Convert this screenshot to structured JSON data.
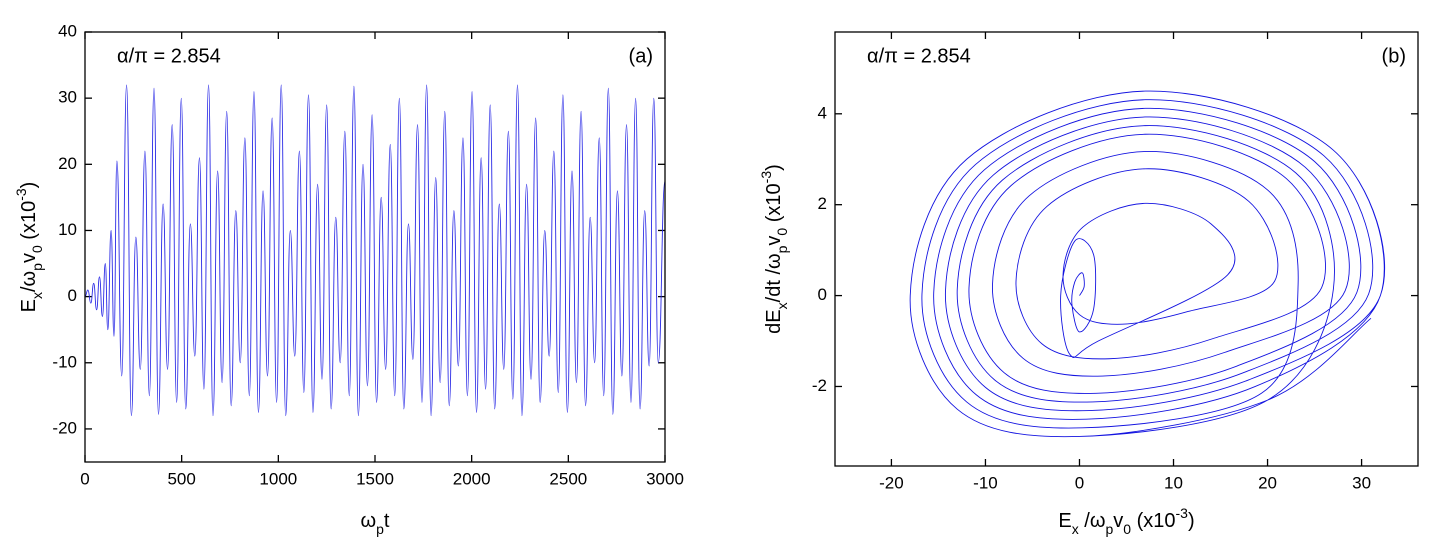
{
  "chart_data": [
    {
      "type": "line",
      "annotation": "α/π = 2.854",
      "panel_label": "(a)",
      "x_label": [
        {
          "text": "ω"
        },
        {
          "text": "p",
          "shift": "sub"
        },
        {
          "text": "t"
        }
      ],
      "y_label": [
        {
          "text": "E"
        },
        {
          "text": "x",
          "shift": "sub"
        },
        {
          "text": "/ω"
        },
        {
          "text": "p",
          "shift": "sub"
        },
        {
          "text": "v"
        },
        {
          "text": "0",
          "shift": "sub"
        },
        {
          "text": " (x10"
        },
        {
          "text": "-3",
          "shift": "super"
        },
        {
          "text": ")"
        }
      ],
      "xlim": [
        0,
        3000
      ],
      "xticks": [
        0,
        500,
        1000,
        1500,
        2000,
        2500,
        3000
      ],
      "ylim": [
        -25,
        40
      ],
      "yticks": [
        -20,
        -10,
        0,
        10,
        20,
        30,
        40
      ],
      "series": [
        {
          "color": "#2a2ae6",
          "x": [
            0,
            15,
            30,
            45,
            60,
            75,
            90,
            105,
            118,
            135,
            150,
            165,
            190,
            215,
            240,
            263,
            286,
            310,
            333,
            357,
            380,
            404,
            427,
            451,
            474,
            498,
            521,
            545,
            568,
            592,
            615,
            639,
            662,
            686,
            709,
            733,
            756,
            780,
            803,
            827,
            850,
            874,
            897,
            921,
            944,
            968,
            991,
            1015,
            1038,
            1062,
            1085,
            1109,
            1132,
            1156,
            1179,
            1203,
            1226,
            1250,
            1273,
            1297,
            1320,
            1344,
            1367,
            1391,
            1414,
            1438,
            1461,
            1485,
            1508,
            1532,
            1555,
            1579,
            1602,
            1626,
            1649,
            1673,
            1696,
            1720,
            1743,
            1767,
            1790,
            1814,
            1837,
            1861,
            1884,
            1908,
            1931,
            1955,
            1978,
            2002,
            2025,
            2049,
            2072,
            2096,
            2119,
            2143,
            2166,
            2190,
            2213,
            2237,
            2260,
            2284,
            2307,
            2331,
            2354,
            2378,
            2401,
            2425,
            2448,
            2472,
            2495,
            2519,
            2542,
            2566,
            2589,
            2613,
            2636,
            2660,
            2683,
            2707,
            2730,
            2754,
            2777,
            2801,
            2824,
            2848,
            2871,
            2895,
            2918,
            2942,
            2965,
            3000
          ],
          "values": [
            0,
            1,
            -1,
            2,
            -2,
            3,
            -3,
            5,
            -5,
            10,
            -6,
            20.5,
            -12,
            32,
            -18,
            9,
            -11,
            22,
            -15,
            31.5,
            -17.8,
            14,
            -11,
            26,
            -16,
            30,
            -17,
            11,
            -9,
            21,
            -14,
            32,
            -18,
            19,
            -13,
            28,
            -16.5,
            13,
            -10,
            24,
            -15,
            31,
            -17.5,
            16,
            -12,
            27,
            -16,
            32,
            -18,
            10,
            -9,
            22,
            -14.5,
            30.5,
            -17.5,
            17,
            -12.5,
            29,
            -17,
            12,
            -10,
            25,
            -15,
            31.8,
            -18,
            20,
            -13.5,
            27.5,
            -16,
            15,
            -11,
            23,
            -15,
            30,
            -17,
            11,
            -9.5,
            26,
            -16,
            32,
            -18,
            18,
            -13,
            28,
            -16.5,
            13,
            -10.5,
            24,
            -15,
            31,
            -17.5,
            21,
            -14,
            29,
            -17,
            14,
            -11,
            25,
            -15.5,
            32,
            -18,
            17,
            -12.5,
            27,
            -16,
            10,
            -9,
            22,
            -14.5,
            30.5,
            -17.5,
            19,
            -13,
            28,
            -16.5,
            12,
            -10,
            24,
            -15,
            31.5,
            -17.8,
            16,
            -12,
            26,
            -16,
            30,
            -17,
            13,
            -10.5,
            30,
            -10,
            17.5
          ]
        }
      ]
    },
    {
      "type": "line",
      "annotation": "α/π = 2.854",
      "panel_label": "(b)",
      "x_label": [
        {
          "text": "E"
        },
        {
          "text": "x",
          "shift": "sub"
        },
        {
          "text": " /ω"
        },
        {
          "text": "p",
          "shift": "sub"
        },
        {
          "text": "v"
        },
        {
          "text": "0",
          "shift": "sub"
        },
        {
          "text": " (x10"
        },
        {
          "text": "-3",
          "shift": "super"
        },
        {
          "text": ")"
        }
      ],
      "y_label": [
        {
          "text": "dE"
        },
        {
          "text": "x",
          "shift": "sub"
        },
        {
          "text": "/dt /ω"
        },
        {
          "text": "p",
          "shift": "sub"
        },
        {
          "text": "v"
        },
        {
          "text": "0",
          "shift": "sub"
        },
        {
          "text": " (x10"
        },
        {
          "text": "-3",
          "shift": "super"
        },
        {
          "text": ")"
        }
      ],
      "xlim": [
        -26,
        36
      ],
      "xticks": [
        -20,
        -10,
        0,
        10,
        20,
        30
      ],
      "ylim": [
        -3.75,
        5.8
      ],
      "yticks": [
        -2,
        0,
        2,
        4
      ],
      "series": [
        {
          "color": "#1414e0",
          "x": [
            0,
            0.5,
            0.3,
            -0.5,
            -0.8,
            0,
            1.5,
            1.5,
            -0.5,
            -2,
            -1,
            2,
            15.75,
            14,
            7,
            0.35,
            -1.75,
            0,
            4.55,
            11.55,
            20.75,
            18,
            7,
            -3.45,
            -6.75,
            -4,
            3.15,
            14.15,
            25.75,
            22,
            7,
            -7.25,
            -11.75,
            -8,
            1.75,
            16.75,
            29.5,
            25,
            7,
            -10.1,
            -15.5,
            -11,
            0.7,
            18.7,
            32,
            27,
            7,
            -12,
            -18,
            -13,
            0,
            20,
            27,
            23,
            7,
            -8.2,
            -13,
            -9,
            1.4,
            17.4,
            30.75,
            26,
            7,
            -11.05,
            -16.75,
            -12,
            0.35,
            19.35,
            23.25,
            20,
            7,
            -5.35,
            -9.25,
            -6,
            2.45,
            15.45,
            28.25,
            24,
            7,
            -9.15,
            -14.25,
            -10,
            1.05,
            18.05,
            32,
            27,
            7,
            -12,
            -18,
            -13,
            0,
            20,
            31
          ],
          "values": [
            0,
            0.2,
            0.5,
            0.3,
            -0.2,
            -0.8,
            -0.3,
            0.9,
            1.2,
            0,
            -1.3,
            -1,
            0.455,
            1.575,
            2.03,
            1.505,
            0.455,
            -0.42,
            -0.63,
            -0.35,
            0.315,
            2.075,
            2.79,
            1.965,
            0.315,
            -1.06,
            -1.39,
            -0.95,
            0.175,
            2.575,
            3.55,
            2.425,
            0.175,
            -1.7,
            -2.15,
            -1.55,
            0.07,
            2.95,
            4.12,
            2.77,
            0.07,
            -2.18,
            -2.72,
            -2,
            0,
            3.2,
            4.5,
            3,
            0,
            -2.5,
            -3.1,
            -2.3,
            0.14,
            2.7,
            3.74,
            2.54,
            0.14,
            -1.86,
            -2.34,
            -1.7,
            0.035,
            3.075,
            4.31,
            2.885,
            0.035,
            -2.34,
            -2.91,
            -2.15,
            0.245,
            2.325,
            3.17,
            2.195,
            0.245,
            -1.38,
            -1.77,
            -1.25,
            0.105,
            2.825,
            3.93,
            2.655,
            0.105,
            -2.02,
            -2.53,
            -1.85,
            0,
            3.2,
            4.5,
            3,
            0,
            -2.5,
            -3.1,
            -2.3,
            -0.5
          ]
        }
      ]
    }
  ]
}
